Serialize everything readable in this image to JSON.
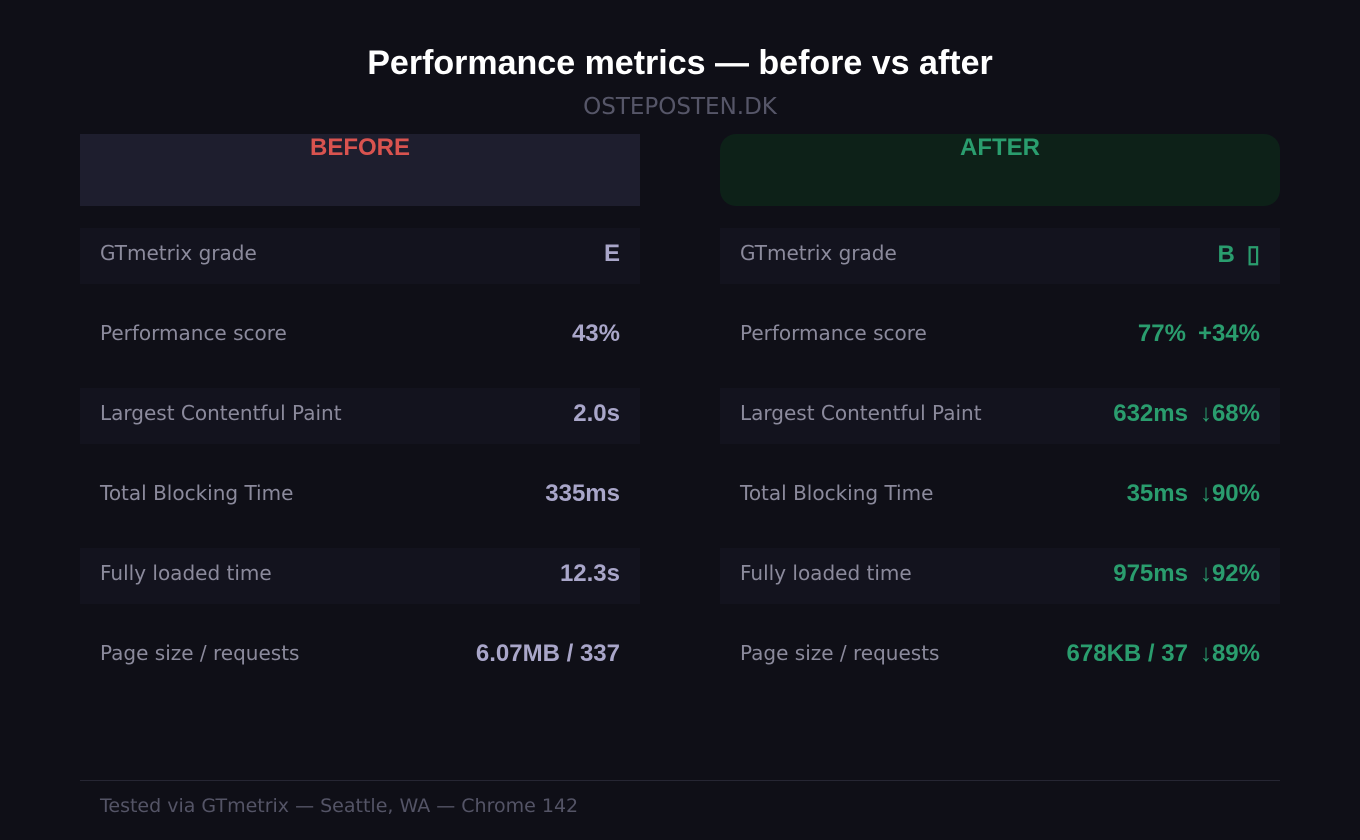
{
  "title": "Performance metrics — before vs after",
  "subtitle": "OSTEPOSTEN.DK",
  "columns": {
    "before": "BEFORE",
    "after": "AFTER"
  },
  "rows": [
    {
      "label": "GTmetrix grade",
      "before": "E",
      "after": "B",
      "change": "▯"
    },
    {
      "label": "Performance score",
      "before": "43%",
      "after": "77%",
      "change": "+34%"
    },
    {
      "label": "Largest Contentful Paint",
      "before": "2.0s",
      "after": "632ms",
      "change": "↓68%"
    },
    {
      "label": "Total Blocking Time",
      "before": "335ms",
      "after": "35ms",
      "change": "↓90%"
    },
    {
      "label": "Fully loaded time",
      "before": "12.3s",
      "after": "975ms",
      "change": "↓92%"
    },
    {
      "label": "Page size / requests",
      "before": "6.07MB / 337",
      "after": "678KB / 37",
      "change": "↓89%"
    }
  ],
  "footer": "Tested via GTmetrix — Seattle, WA — Chrome 142"
}
